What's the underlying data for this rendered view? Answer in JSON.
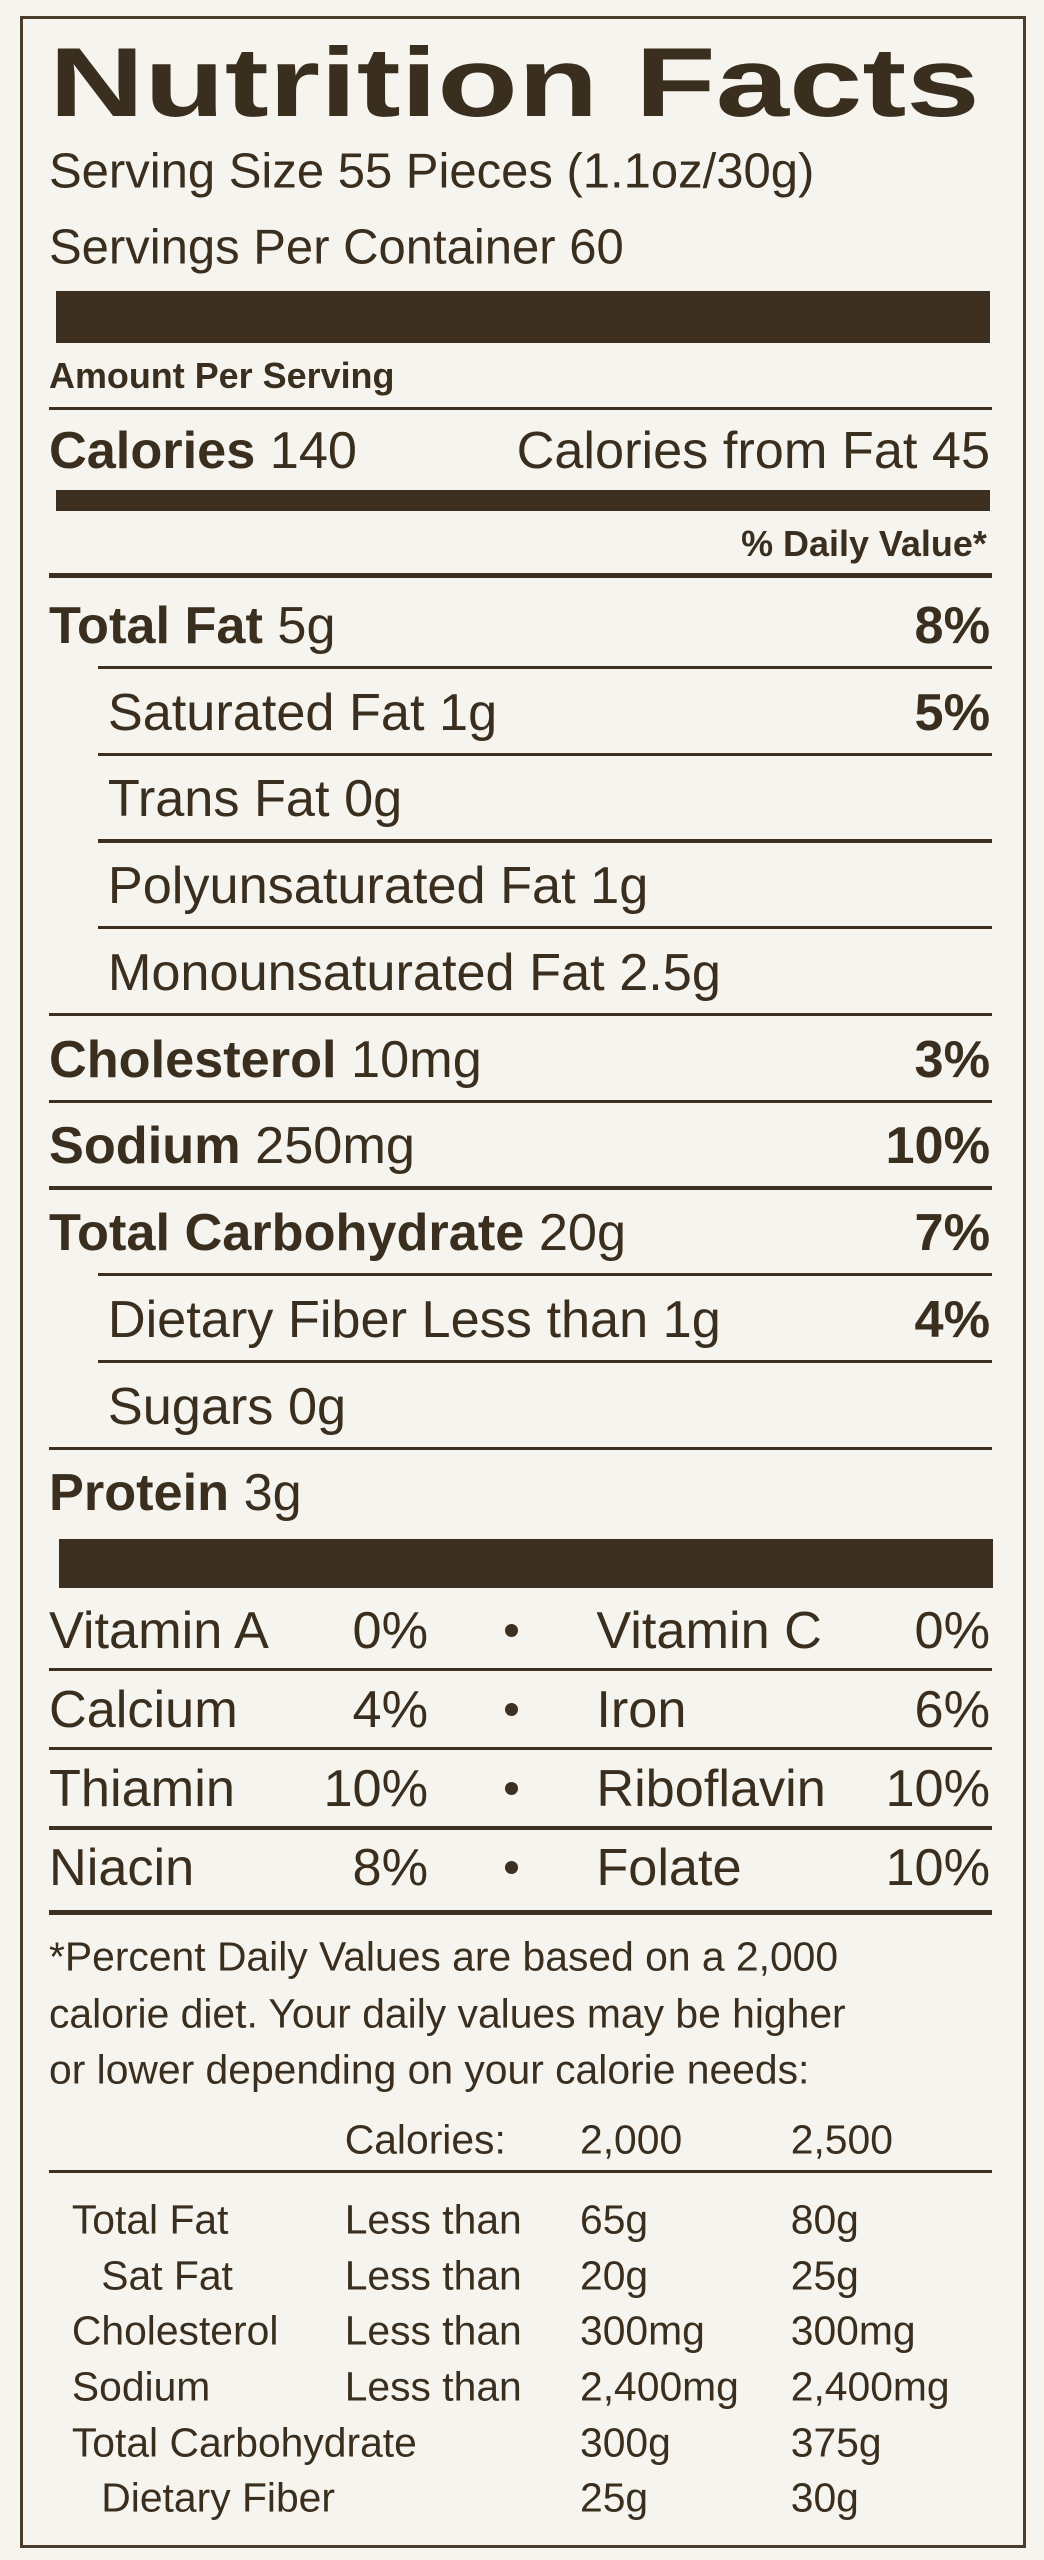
{
  "title": "Nutrition Facts",
  "serving_size": "Serving Size 55 Pieces (1.1oz/30g)",
  "servings_per_container": "Servings Per Container 60",
  "amount_per_serving": "Amount Per Serving",
  "calories": {
    "label": "Calories",
    "value": "140"
  },
  "calories_from_fat": "Calories from Fat 45",
  "daily_value_header": "% Daily Value*",
  "nutrients": [
    {
      "label": "Total Fat",
      "amount": "5g",
      "dv": "8%",
      "sub": [
        {
          "label": "Saturated Fat",
          "amount": "1g",
          "dv": "5%"
        },
        {
          "label": "Trans Fat",
          "amount": "0g"
        },
        {
          "label": "Polyunsaturated Fat",
          "amount": "1g"
        },
        {
          "label": "Monounsaturated Fat",
          "amount": "2.5g"
        }
      ]
    },
    {
      "label": "Cholesterol",
      "amount": "10mg",
      "dv": "3%"
    },
    {
      "label": "Sodium",
      "amount": "250mg",
      "dv": "10%"
    },
    {
      "label": "Total Carbohydrate",
      "amount": "20g",
      "dv": "7%",
      "sub": [
        {
          "label": "Dietary Fiber",
          "amount": "Less than 1g",
          "dv": "4%"
        },
        {
          "label": "Sugars",
          "amount": "0g"
        }
      ]
    },
    {
      "label": "Protein",
      "amount": "3g"
    }
  ],
  "vitamins": [
    {
      "name": "Vitamin A",
      "value": "0%"
    },
    {
      "name": "Vitamin C",
      "value": "0%"
    },
    {
      "name": "Calcium",
      "value": "4%"
    },
    {
      "name": "Iron",
      "value": "6%"
    },
    {
      "name": "Thiamin",
      "value": "10%"
    },
    {
      "name": "Riboflavin",
      "value": "10%"
    },
    {
      "name": "Niacin",
      "value": "8%"
    },
    {
      "name": "Folate",
      "value": "10%"
    }
  ],
  "footnote": [
    "*Percent Daily Values are based on a 2,000",
    "calorie diet. Your daily values may be higher",
    "or lower depending on your calorie needs:"
  ],
  "dv_table": {
    "header": [
      "Calories:",
      "2,000",
      "2,500"
    ],
    "rows": [
      {
        "nutrient": "Total Fat",
        "limit": "Less than",
        "amounts": [
          "65g",
          "80g"
        ],
        "sub": [
          {
            "nutrient": "Sat Fat",
            "limit": "Less than",
            "amounts": [
              "20g",
              "25g"
            ]
          }
        ]
      },
      {
        "nutrient": "Cholesterol",
        "limit": "Less than",
        "amounts": [
          "300mg",
          "300mg"
        ]
      },
      {
        "nutrient": "Sodium",
        "limit": "Less than",
        "amounts": [
          "2,400mg",
          "2,400mg"
        ]
      },
      {
        "nutrient": "Total Carbohydrate",
        "amounts": [
          "300g",
          "375g"
        ],
        "sub": [
          {
            "nutrient": "Dietary Fiber",
            "amounts": [
              "25g",
              "30g"
            ]
          }
        ]
      }
    ]
  }
}
